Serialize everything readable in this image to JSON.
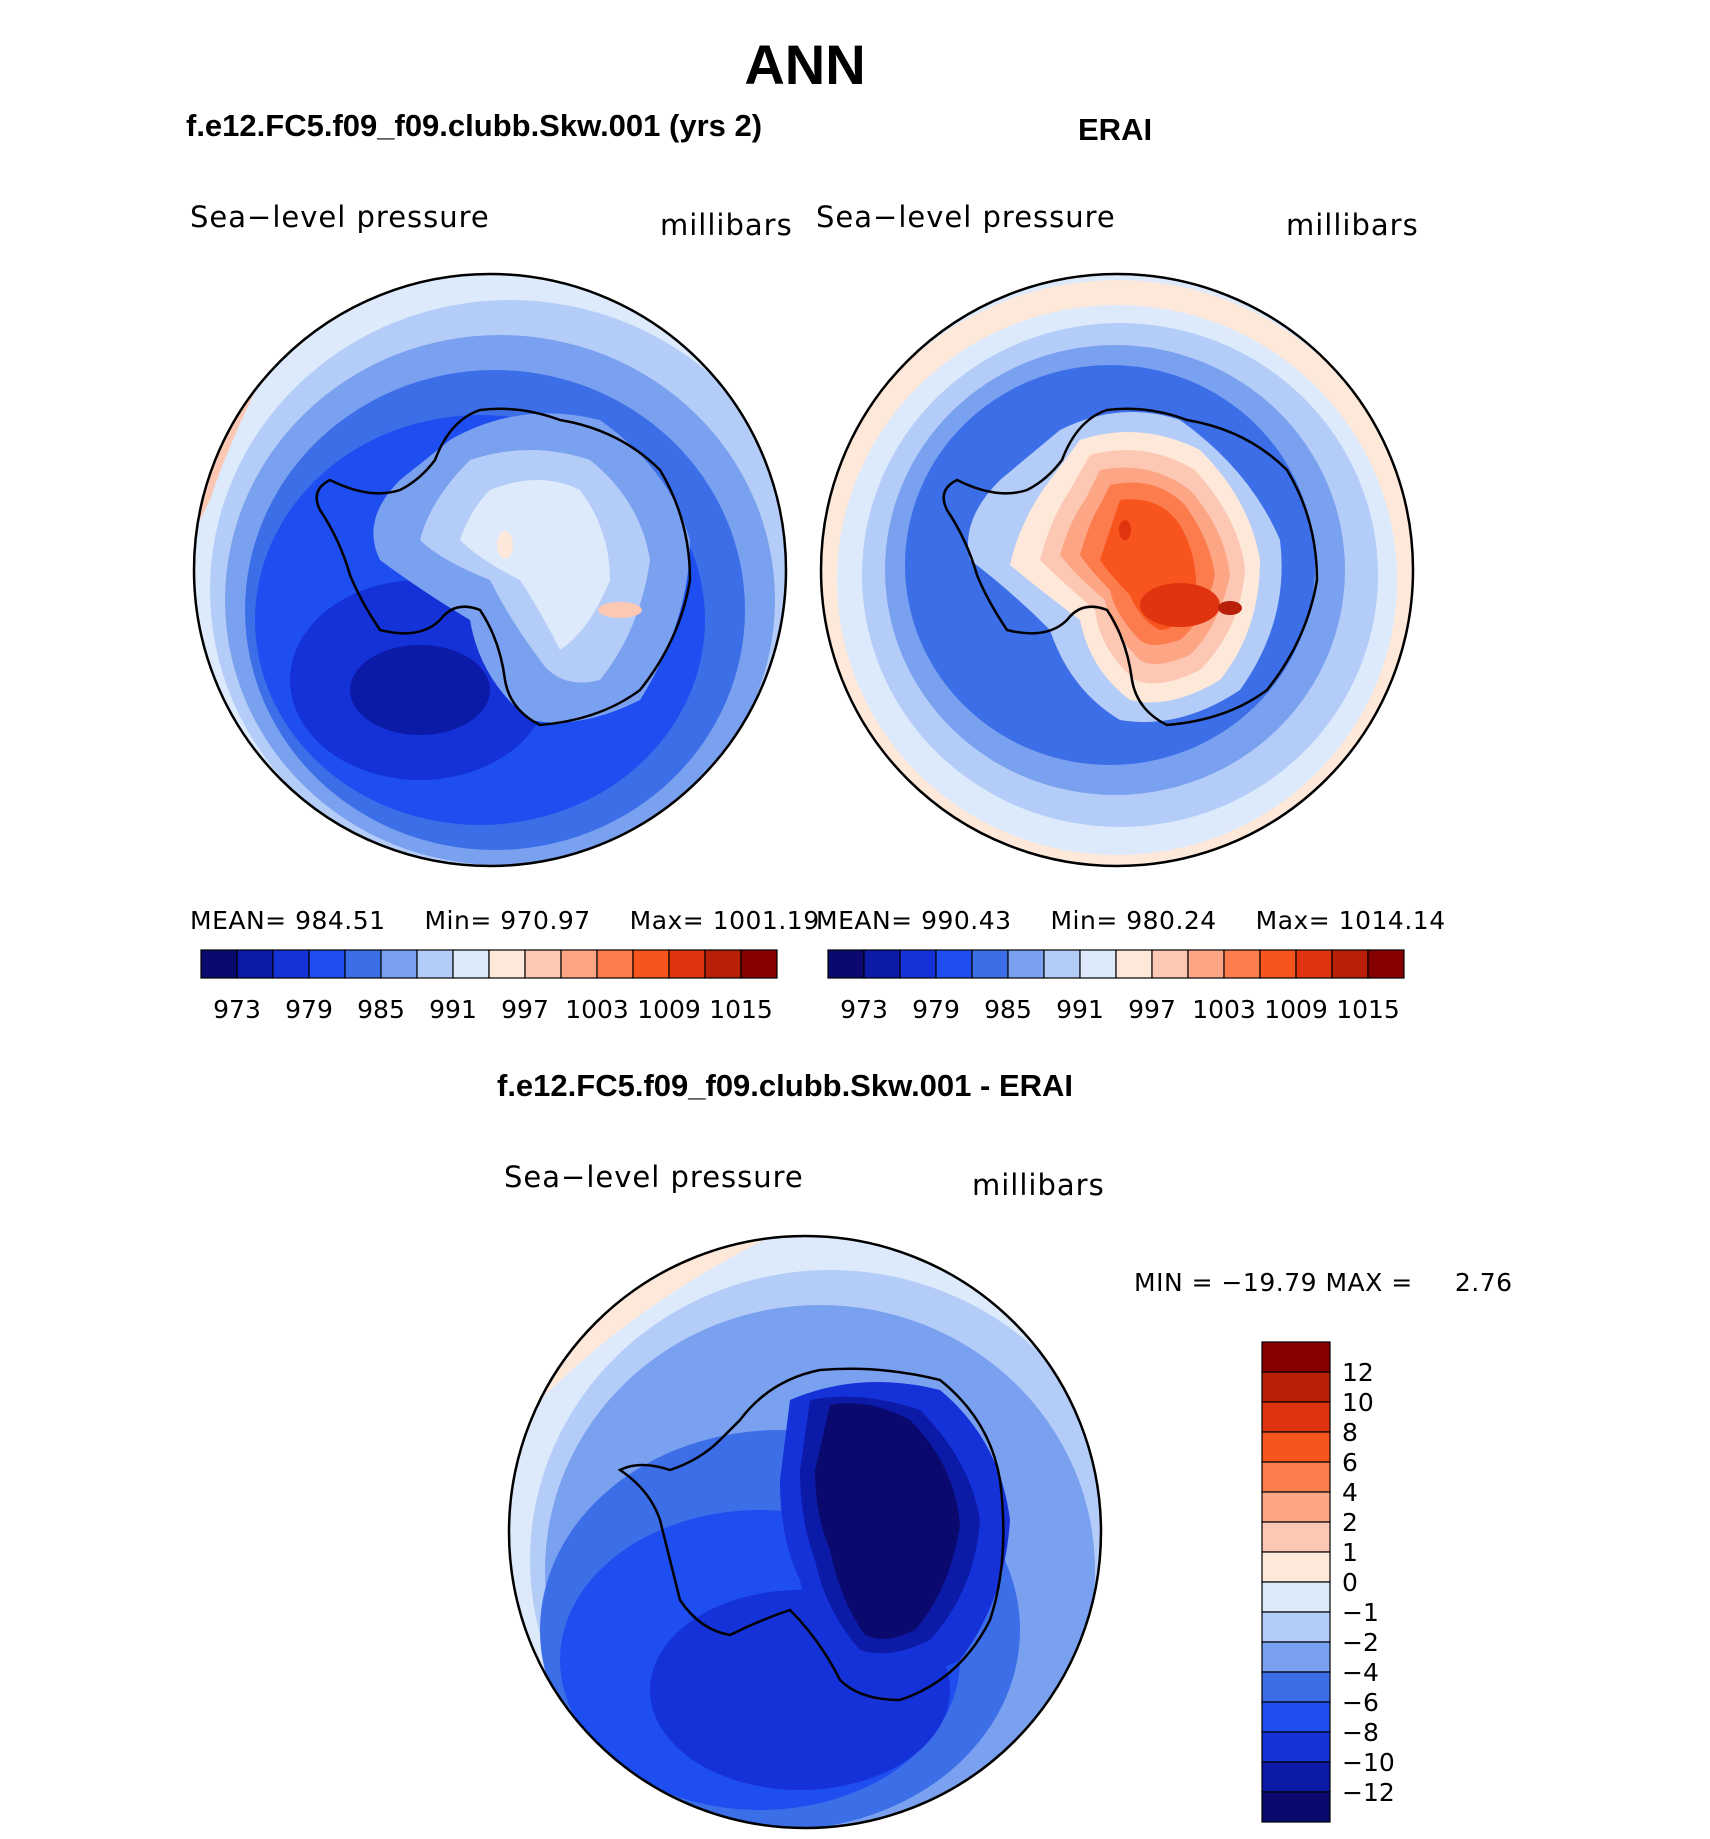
{
  "main_title": "ANN",
  "panels": [
    {
      "title": "f.e12.FC5.f09_f09.clubb.Skw.001 (yrs 2)",
      "variable": "Sea−level pressure",
      "units": "millibars",
      "mean_label": "MEAN=",
      "mean": "984.51",
      "min_label": "Min=",
      "min": "970.97",
      "max_label": "Max=",
      "max": "1001.19"
    },
    {
      "title": "ERAI",
      "variable": "Sea−level pressure",
      "units": "millibars",
      "mean_label": "MEAN=",
      "mean": "990.43",
      "min_label": "Min=",
      "min": "980.24",
      "max_label": "Max=",
      "max": "1014.14"
    }
  ],
  "diff_panel": {
    "title": "f.e12.FC5.f09_f09.clubb.Skw.001 - ERAI",
    "variable": "Sea−level pressure",
    "units": "millibars",
    "minmax_text": "MIN = −19.79 MAX =     2.76"
  },
  "chart_data": [
    {
      "type": "heatmap",
      "projection": "south polar stereographic",
      "colorbar_ticks": [
        "973",
        "979",
        "985",
        "991",
        "997",
        "1003",
        "1009",
        "1015"
      ],
      "colors": [
        "#0a0a6e",
        "#0c1aa8",
        "#1432d8",
        "#1e4ef0",
        "#3c6ee8",
        "#7aa0f0",
        "#b4ccf8",
        "#dceafc",
        "#fde8da",
        "#fcc8b4",
        "#fca686",
        "#fc7c4e",
        "#f8541e",
        "#e03410",
        "#b82008",
        "#860000"
      ]
    },
    {
      "type": "heatmap",
      "projection": "south polar stereographic",
      "colorbar_ticks": [
        "973",
        "979",
        "985",
        "991",
        "997",
        "1003",
        "1009",
        "1015"
      ],
      "colors": [
        "#0a0a6e",
        "#0c1aa8",
        "#1432d8",
        "#1e4ef0",
        "#3c6ee8",
        "#7aa0f0",
        "#b4ccf8",
        "#dceafc",
        "#fde8da",
        "#fcc8b4",
        "#fca686",
        "#fc7c4e",
        "#f8541e",
        "#e03410",
        "#b82008",
        "#860000"
      ]
    },
    {
      "type": "heatmap",
      "projection": "south polar stereographic",
      "colorbar_ticks": [
        "12",
        "10",
        "8",
        "6",
        "4",
        "2",
        "1",
        "0",
        "−1",
        "−2",
        "−4",
        "−6",
        "−8",
        "−10",
        "−12"
      ],
      "colors": [
        "#860000",
        "#b82008",
        "#e03410",
        "#f8541e",
        "#fc7c4e",
        "#fca686",
        "#fcc8b4",
        "#fde8da",
        "#dceafc",
        "#b4ccf8",
        "#7aa0f0",
        "#3c6ee8",
        "#1e4ef0",
        "#1432d8",
        "#0c1aa8",
        "#0a0a6e"
      ]
    }
  ]
}
